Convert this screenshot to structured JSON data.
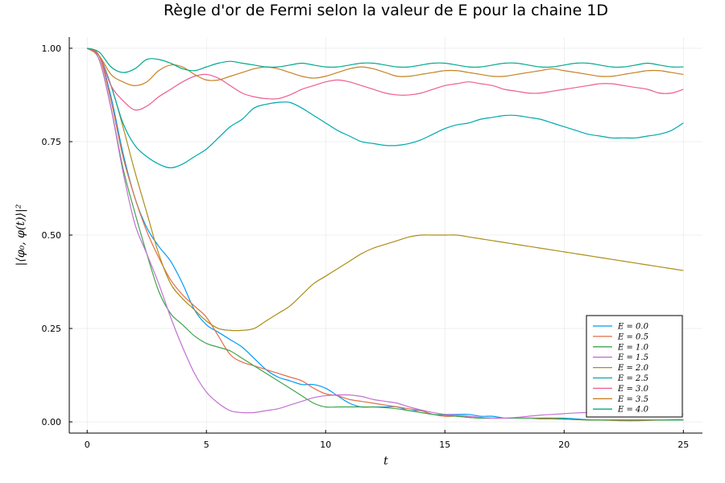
{
  "chart_data": {
    "type": "line",
    "title": "Règle d'or de Fermi selon la valeur de E pour la chaine 1D",
    "xlabel": "t",
    "ylabel": "|⟨φ₀, φ(t)⟩|²",
    "xlim": [
      -0.75,
      25.8
    ],
    "ylim": [
      -0.03,
      1.03
    ],
    "xticks": [
      0,
      5,
      10,
      15,
      20,
      25
    ],
    "yticks": [
      0.0,
      0.25,
      0.5,
      0.75,
      1.0
    ],
    "xtick_labels": [
      "0",
      "5",
      "10",
      "15",
      "20",
      "25"
    ],
    "ytick_labels": [
      "0.00",
      "0.25",
      "0.50",
      "0.75",
      "1.00"
    ],
    "grid": true,
    "legend_position": "bottom-right",
    "x": [
      0,
      0.5,
      1,
      1.5,
      2,
      2.5,
      3,
      3.5,
      4,
      4.5,
      5,
      5.5,
      6,
      6.5,
      7,
      7.5,
      8,
      8.5,
      9,
      9.5,
      10,
      10.5,
      11,
      11.5,
      12,
      12.5,
      13,
      13.5,
      14,
      14.5,
      15,
      15.5,
      16,
      16.5,
      17,
      17.5,
      18,
      18.5,
      19,
      19.5,
      20,
      20.5,
      21,
      21.5,
      22,
      22.5,
      23,
      23.5,
      24,
      24.5,
      25
    ],
    "series": [
      {
        "name": "E = 0.0",
        "color": "#009AFA",
        "values": [
          1.0,
          0.98,
          0.87,
          0.72,
          0.6,
          0.52,
          0.47,
          0.43,
          0.37,
          0.3,
          0.26,
          0.24,
          0.22,
          0.2,
          0.17,
          0.14,
          0.12,
          0.11,
          0.1,
          0.1,
          0.09,
          0.07,
          0.05,
          0.04,
          0.04,
          0.04,
          0.04,
          0.03,
          0.03,
          0.02,
          0.02,
          0.02,
          0.02,
          0.015,
          0.015,
          0.01,
          0.01,
          0.01,
          0.01,
          0.01,
          0.01,
          0.008,
          0.006,
          0.005,
          0.005,
          0.005,
          0.005,
          0.005,
          0.005,
          0.005,
          0.005
        ]
      },
      {
        "name": "E = 0.5",
        "color": "#E36F47",
        "values": [
          1.0,
          0.98,
          0.86,
          0.71,
          0.6,
          0.51,
          0.44,
          0.38,
          0.34,
          0.31,
          0.28,
          0.23,
          0.18,
          0.16,
          0.15,
          0.14,
          0.13,
          0.12,
          0.11,
          0.09,
          0.075,
          0.07,
          0.06,
          0.055,
          0.05,
          0.045,
          0.04,
          0.035,
          0.03,
          0.02,
          0.015,
          0.015,
          0.012,
          0.01,
          0.01,
          0.01,
          0.01,
          0.01,
          0.008,
          0.008,
          0.007,
          0.006,
          0.005,
          0.005,
          0.004,
          0.003,
          0.003,
          0.004,
          0.005,
          0.006,
          0.006
        ]
      },
      {
        "name": "E = 1.0",
        "color": "#3EA44E",
        "values": [
          1.0,
          0.97,
          0.84,
          0.68,
          0.56,
          0.45,
          0.35,
          0.29,
          0.26,
          0.23,
          0.21,
          0.2,
          0.19,
          0.17,
          0.15,
          0.13,
          0.11,
          0.09,
          0.07,
          0.05,
          0.04,
          0.04,
          0.04,
          0.04,
          0.04,
          0.038,
          0.035,
          0.03,
          0.025,
          0.02,
          0.018,
          0.015,
          0.012,
          0.01,
          0.01,
          0.01,
          0.01,
          0.01,
          0.01,
          0.01,
          0.008,
          0.006,
          0.005,
          0.005,
          0.005,
          0.005,
          0.005,
          0.005,
          0.005,
          0.005,
          0.005
        ]
      },
      {
        "name": "E = 1.5",
        "color": "#C271D2",
        "values": [
          1.0,
          0.97,
          0.84,
          0.67,
          0.53,
          0.45,
          0.37,
          0.28,
          0.2,
          0.13,
          0.08,
          0.05,
          0.03,
          0.025,
          0.025,
          0.03,
          0.035,
          0.045,
          0.055,
          0.065,
          0.07,
          0.072,
          0.072,
          0.068,
          0.06,
          0.055,
          0.05,
          0.04,
          0.032,
          0.025,
          0.02,
          0.018,
          0.015,
          0.012,
          0.01,
          0.01,
          0.012,
          0.015,
          0.018,
          0.02,
          0.022,
          0.024,
          0.025,
          0.025,
          0.024,
          0.022,
          0.022,
          0.02,
          0.02,
          0.02,
          0.02
        ]
      },
      {
        "name": "E = 2.0",
        "color": "#AC8E18",
        "values": [
          1.0,
          0.98,
          0.9,
          0.79,
          0.67,
          0.56,
          0.45,
          0.37,
          0.33,
          0.3,
          0.27,
          0.25,
          0.245,
          0.245,
          0.25,
          0.27,
          0.29,
          0.31,
          0.34,
          0.37,
          0.39,
          0.41,
          0.43,
          0.45,
          0.465,
          0.475,
          0.485,
          0.495,
          0.5,
          0.5,
          0.5,
          0.5,
          0.495,
          0.49,
          0.485,
          0.48,
          0.475,
          0.47,
          0.465,
          0.46,
          0.455,
          0.45,
          0.445,
          0.44,
          0.435,
          0.43,
          0.425,
          0.42,
          0.415,
          0.41,
          0.405
        ]
      },
      {
        "name": "E = 2.5",
        "color": "#00A9AD",
        "values": [
          1.0,
          0.98,
          0.9,
          0.8,
          0.74,
          0.71,
          0.69,
          0.68,
          0.69,
          0.71,
          0.73,
          0.76,
          0.79,
          0.81,
          0.84,
          0.85,
          0.855,
          0.855,
          0.84,
          0.82,
          0.8,
          0.78,
          0.765,
          0.75,
          0.745,
          0.74,
          0.74,
          0.745,
          0.755,
          0.77,
          0.785,
          0.795,
          0.8,
          0.81,
          0.815,
          0.82,
          0.82,
          0.815,
          0.81,
          0.8,
          0.79,
          0.78,
          0.77,
          0.765,
          0.76,
          0.76,
          0.76,
          0.765,
          0.77,
          0.78,
          0.8
        ]
      },
      {
        "name": "E = 3.0",
        "color": "#ED5D92",
        "values": [
          1.0,
          0.98,
          0.9,
          0.86,
          0.835,
          0.845,
          0.87,
          0.89,
          0.91,
          0.925,
          0.93,
          0.92,
          0.9,
          0.88,
          0.87,
          0.865,
          0.865,
          0.875,
          0.89,
          0.9,
          0.91,
          0.915,
          0.91,
          0.9,
          0.89,
          0.88,
          0.875,
          0.875,
          0.88,
          0.89,
          0.9,
          0.905,
          0.91,
          0.905,
          0.9,
          0.89,
          0.885,
          0.88,
          0.88,
          0.885,
          0.89,
          0.895,
          0.9,
          0.905,
          0.905,
          0.9,
          0.895,
          0.89,
          0.88,
          0.88,
          0.89
        ]
      },
      {
        "name": "E = 3.5",
        "color": "#C68225",
        "values": [
          1.0,
          0.98,
          0.93,
          0.91,
          0.9,
          0.91,
          0.94,
          0.955,
          0.95,
          0.93,
          0.915,
          0.915,
          0.925,
          0.935,
          0.945,
          0.95,
          0.945,
          0.935,
          0.925,
          0.92,
          0.925,
          0.935,
          0.945,
          0.95,
          0.945,
          0.935,
          0.925,
          0.925,
          0.93,
          0.935,
          0.94,
          0.94,
          0.935,
          0.93,
          0.925,
          0.925,
          0.93,
          0.935,
          0.94,
          0.945,
          0.94,
          0.935,
          0.93,
          0.925,
          0.925,
          0.93,
          0.935,
          0.94,
          0.94,
          0.935,
          0.93
        ]
      },
      {
        "name": "E = 4.0",
        "color": "#00A98D",
        "values": [
          1.0,
          0.99,
          0.95,
          0.935,
          0.945,
          0.97,
          0.97,
          0.96,
          0.945,
          0.94,
          0.95,
          0.96,
          0.965,
          0.96,
          0.955,
          0.95,
          0.95,
          0.955,
          0.96,
          0.955,
          0.95,
          0.95,
          0.955,
          0.96,
          0.96,
          0.955,
          0.95,
          0.95,
          0.955,
          0.96,
          0.96,
          0.955,
          0.95,
          0.95,
          0.955,
          0.96,
          0.96,
          0.955,
          0.95,
          0.95,
          0.955,
          0.96,
          0.96,
          0.955,
          0.95,
          0.95,
          0.955,
          0.96,
          0.955,
          0.95,
          0.95
        ]
      }
    ]
  }
}
